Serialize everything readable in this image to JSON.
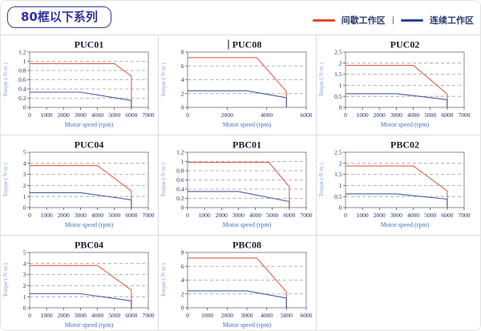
{
  "header": {
    "title": "80框以下系列"
  },
  "legend": {
    "separator": "|",
    "items": [
      {
        "label": "间歇工作区",
        "color": "#e8472b"
      },
      {
        "label": "连续工作区",
        "color": "#2b4590"
      }
    ]
  },
  "chart_data": [
    {
      "type": "line",
      "title": "PUC01",
      "xlabel": "Motor speed (rpm)",
      "ylabel": "Torque ( N·m )",
      "x": {
        "min": 0,
        "max": 7000,
        "ticks": [
          0,
          1000,
          2000,
          3000,
          4000,
          5000,
          6000,
          7000
        ]
      },
      "y": {
        "min": 0,
        "max": 1.2,
        "ticks": [
          0,
          0.2,
          0.4,
          0.6,
          0.8,
          1,
          1.2
        ]
      },
      "grid": "dashed-horizontal",
      "legend_position": "none",
      "series": [
        {
          "name": "间歇工作区",
          "color": "#e2604e",
          "points": [
            [
              0,
              0.95
            ],
            [
              5000,
              0.95
            ],
            [
              6000,
              0.68
            ],
            [
              6000,
              0
            ]
          ]
        },
        {
          "name": "连续工作区",
          "color": "#4a5c9b",
          "points": [
            [
              0,
              0.33
            ],
            [
              3000,
              0.33
            ],
            [
              6000,
              0.15
            ],
            [
              6000,
              0
            ]
          ]
        }
      ]
    },
    {
      "type": "line",
      "title": "PUC08",
      "cursor_before_title": true,
      "xlabel": "Motor speed (rpm)",
      "ylabel": "Torque ( N·m )",
      "x": {
        "min": 0,
        "max": 6000,
        "ticks": [
          0,
          2000,
          4000,
          6000
        ]
      },
      "y": {
        "min": 0,
        "max": 8,
        "ticks": [
          0,
          2,
          4,
          6,
          8
        ]
      },
      "grid": "dashed-horizontal",
      "legend_position": "none",
      "series": [
        {
          "name": "间歇工作区",
          "color": "#e2604e",
          "points": [
            [
              0,
              7.2
            ],
            [
              3500,
              7.2
            ],
            [
              5000,
              2.3
            ],
            [
              5000,
              0
            ]
          ]
        },
        {
          "name": "连续工作区",
          "color": "#4a5c9b",
          "points": [
            [
              0,
              2.4
            ],
            [
              3000,
              2.4
            ],
            [
              5000,
              1.4
            ],
            [
              5000,
              0
            ]
          ]
        }
      ]
    },
    {
      "type": "line",
      "title": "PUC02",
      "xlabel": "Motor speed (rpm)",
      "ylabel": "Torque ( N·m )",
      "x": {
        "min": 0,
        "max": 7000,
        "ticks": [
          0,
          1000,
          2000,
          3000,
          4000,
          5000,
          6000,
          7000
        ]
      },
      "y": {
        "min": 0,
        "max": 2.5,
        "ticks": [
          0,
          0.5,
          1,
          1.5,
          2,
          2.5
        ]
      },
      "grid": "dashed-horizontal",
      "legend_position": "none",
      "series": [
        {
          "name": "间歇工作区",
          "color": "#e2604e",
          "points": [
            [
              0,
              1.9
            ],
            [
              4000,
              1.9
            ],
            [
              6000,
              0.6
            ],
            [
              6000,
              0
            ]
          ]
        },
        {
          "name": "连续工作区",
          "color": "#4a5c9b",
          "points": [
            [
              0,
              0.62
            ],
            [
              3000,
              0.62
            ],
            [
              6000,
              0.35
            ],
            [
              6000,
              0
            ]
          ]
        }
      ]
    },
    {
      "type": "line",
      "title": "PUC04",
      "xlabel": "Motor speed (rpm)",
      "ylabel": "Torque ( N·m )",
      "x": {
        "min": 0,
        "max": 7000,
        "ticks": [
          0,
          1000,
          2000,
          3000,
          4000,
          5000,
          6000,
          7000
        ]
      },
      "y": {
        "min": 0,
        "max": 5,
        "ticks": [
          0,
          1,
          2,
          3,
          4,
          5
        ]
      },
      "grid": "dashed-horizontal",
      "legend_position": "none",
      "series": [
        {
          "name": "间歇工作区",
          "color": "#e2604e",
          "points": [
            [
              0,
              3.8
            ],
            [
              4000,
              3.8
            ],
            [
              6000,
              1.5
            ],
            [
              6000,
              0
            ]
          ]
        },
        {
          "name": "连续工作区",
          "color": "#4a5c9b",
          "points": [
            [
              0,
              1.35
            ],
            [
              3000,
              1.35
            ],
            [
              6000,
              0.7
            ],
            [
              6000,
              0
            ]
          ]
        }
      ]
    },
    {
      "type": "line",
      "title": "PBC01",
      "xlabel": "Motor speed (rpm)",
      "ylabel": "Torque ( N·m )",
      "x": {
        "min": 0,
        "max": 7000,
        "ticks": [
          0,
          1000,
          2000,
          3000,
          4000,
          5000,
          6000,
          7000
        ]
      },
      "y": {
        "min": 0,
        "max": 1.2,
        "ticks": [
          0,
          0.2,
          0.4,
          0.6,
          0.8,
          1,
          1.2
        ]
      },
      "grid": "dashed-horizontal",
      "legend_position": "none",
      "series": [
        {
          "name": "间歇工作区",
          "color": "#e2604e",
          "points": [
            [
              0,
              0.98
            ],
            [
              4800,
              0.98
            ],
            [
              6000,
              0.45
            ],
            [
              6000,
              0
            ]
          ]
        },
        {
          "name": "连续工作区",
          "color": "#4a5c9b",
          "points": [
            [
              0,
              0.35
            ],
            [
              3000,
              0.35
            ],
            [
              6000,
              0.13
            ],
            [
              6000,
              0
            ]
          ]
        }
      ]
    },
    {
      "type": "line",
      "title": "PBC02",
      "xlabel": "Motor speed (rpm)",
      "ylabel": "Torque ( N·m )",
      "x": {
        "min": 0,
        "max": 7000,
        "ticks": [
          0,
          1000,
          2000,
          3000,
          4000,
          5000,
          6000,
          7000
        ]
      },
      "y": {
        "min": 0,
        "max": 2.5,
        "ticks": [
          0,
          0.5,
          1,
          1.5,
          2,
          2.5
        ]
      },
      "grid": "dashed-horizontal",
      "legend_position": "none",
      "series": [
        {
          "name": "间歇工作区",
          "color": "#e2604e",
          "points": [
            [
              0,
              1.88
            ],
            [
              4000,
              1.88
            ],
            [
              6000,
              0.75
            ],
            [
              6000,
              0
            ]
          ]
        },
        {
          "name": "连续工作区",
          "color": "#4a5c9b",
          "points": [
            [
              0,
              0.62
            ],
            [
              3000,
              0.62
            ],
            [
              6000,
              0.38
            ],
            [
              6000,
              0
            ]
          ]
        }
      ]
    },
    {
      "type": "line",
      "title": "PBC04",
      "xlabel": "Motor speed (rpm)",
      "ylabel": "Torque ( N·m )",
      "x": {
        "min": 0,
        "max": 7000,
        "ticks": [
          0,
          1000,
          2000,
          3000,
          4000,
          5000,
          6000,
          7000
        ]
      },
      "y": {
        "min": 0,
        "max": 5,
        "ticks": [
          0,
          1,
          2,
          3,
          4,
          5
        ]
      },
      "grid": "dashed-horizontal",
      "legend_position": "none",
      "series": [
        {
          "name": "间歇工作区",
          "color": "#e2604e",
          "points": [
            [
              0,
              3.82
            ],
            [
              4000,
              3.82
            ],
            [
              6000,
              1.6
            ],
            [
              6000,
              0
            ]
          ]
        },
        {
          "name": "连续工作区",
          "color": "#4a5c9b",
          "points": [
            [
              0,
              1.27
            ],
            [
              3000,
              1.27
            ],
            [
              6000,
              0.62
            ],
            [
              6000,
              0
            ]
          ]
        }
      ]
    },
    {
      "type": "line",
      "title": "PBC08",
      "xlabel": "Motor speed (rpm)",
      "ylabel": "Torque ( N·m )",
      "x": {
        "min": 0,
        "max": 6000,
        "ticks": [
          0,
          1000,
          2000,
          3000,
          4000,
          5000,
          6000
        ]
      },
      "y": {
        "min": 0,
        "max": 8,
        "ticks": [
          0,
          2,
          4,
          6,
          8
        ]
      },
      "grid": "dashed-horizontal",
      "legend_position": "none",
      "series": [
        {
          "name": "间歇工作区",
          "color": "#e2604e",
          "points": [
            [
              0,
              7.2
            ],
            [
              3500,
              7.2
            ],
            [
              5000,
              2.3
            ],
            [
              5000,
              0
            ]
          ]
        },
        {
          "name": "连续工作区",
          "color": "#4a5c9b",
          "points": [
            [
              0,
              2.45
            ],
            [
              3000,
              2.45
            ],
            [
              5000,
              1.4
            ],
            [
              5000,
              0
            ]
          ]
        }
      ]
    }
  ]
}
